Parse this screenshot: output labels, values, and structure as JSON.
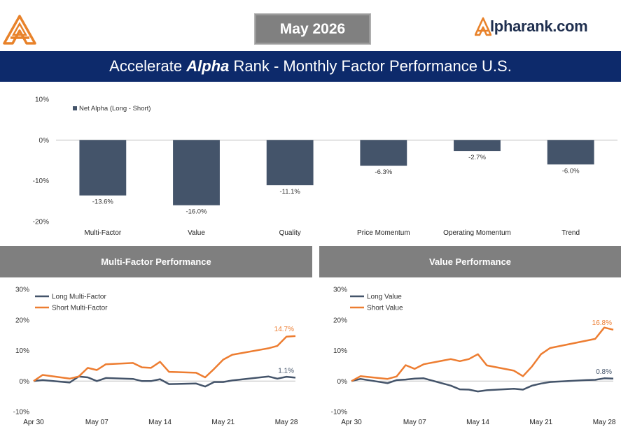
{
  "header": {
    "month": "May 2026",
    "brand_prefix": "A",
    "brand_rest": "lpharank.com",
    "title_pre": "Accelerate ",
    "title_em": "Alpha",
    "title_post": " Rank - Monthly Factor Performance U.S."
  },
  "colors": {
    "navy": "#0d2a6b",
    "bar": "#44546a",
    "long": "#44546a",
    "short": "#ed7d31",
    "panel_gray": "#7f7f7f",
    "brand_orange": "#e8822a"
  },
  "chart_data": [
    {
      "type": "bar",
      "legend": [
        "Net Alpha (Long - Short)"
      ],
      "legend_position": "top-left",
      "categories": [
        "Multi-Factor",
        "Value",
        "Quality",
        "Price Momentum",
        "Operating Momentum",
        "Trend"
      ],
      "series": [
        {
          "name": "Net Alpha (Long - Short)",
          "values": [
            -13.6,
            -16.0,
            -11.1,
            -6.3,
            -2.7,
            -6.0
          ]
        }
      ],
      "data_labels": [
        "-13.6%",
        "-16.0%",
        "-11.1%",
        "-6.3%",
        "-2.7%",
        "-6.0%"
      ],
      "ylim": [
        -20,
        10
      ],
      "yticks": [
        "10%",
        "0%",
        "-10%",
        "-20%"
      ],
      "yticks_values": [
        10,
        0,
        -10,
        -20
      ],
      "grid": false
    },
    {
      "type": "line",
      "title": "Multi-Factor Performance",
      "legend_position": "top-left",
      "x": [
        "2026-04-30",
        "2026-05-01",
        "2026-05-04",
        "2026-05-05",
        "2026-05-06",
        "2026-05-07",
        "2026-05-08",
        "2026-05-11",
        "2026-05-12",
        "2026-05-13",
        "2026-05-14",
        "2026-05-15",
        "2026-05-18",
        "2026-05-19",
        "2026-05-20",
        "2026-05-21",
        "2026-05-22",
        "2026-05-26",
        "2026-05-27",
        "2026-05-28",
        "2026-05-29"
      ],
      "xticks": [
        "Apr 30",
        "May 07",
        "May 14",
        "May 21",
        "May 28"
      ],
      "xticks_values": [
        "2026-04-30",
        "2026-05-07",
        "2026-05-14",
        "2026-05-21",
        "2026-05-28"
      ],
      "ylim": [
        -10,
        30
      ],
      "yticks": [
        "30%",
        "20%",
        "10%",
        "0%",
        "-10%"
      ],
      "yticks_values": [
        30,
        20,
        10,
        0,
        -10
      ],
      "series": [
        {
          "name": "Long Multi-Factor",
          "values": [
            0.0,
            0.3,
            -0.5,
            1.5,
            1.2,
            0.0,
            1.0,
            0.7,
            0.0,
            0.0,
            0.6,
            -1.0,
            -0.8,
            -1.8,
            -0.3,
            -0.3,
            0.2,
            1.5,
            0.8,
            1.4,
            1.1
          ]
        },
        {
          "name": "Short Multi-Factor",
          "values": [
            0.0,
            2.0,
            0.8,
            1.5,
            4.3,
            3.6,
            5.5,
            5.9,
            4.5,
            4.3,
            6.3,
            3.0,
            2.7,
            1.2,
            4.0,
            7.0,
            8.6,
            10.7,
            11.5,
            14.5,
            14.7
          ]
        }
      ],
      "end_labels": [
        "1.1%",
        "14.7%"
      ]
    },
    {
      "type": "line",
      "title": "Value Performance",
      "legend_position": "top-left",
      "x": [
        "2026-04-30",
        "2026-05-01",
        "2026-05-04",
        "2026-05-05",
        "2026-05-06",
        "2026-05-07",
        "2026-05-08",
        "2026-05-11",
        "2026-05-12",
        "2026-05-13",
        "2026-05-14",
        "2026-05-15",
        "2026-05-18",
        "2026-05-19",
        "2026-05-20",
        "2026-05-21",
        "2026-05-22",
        "2026-05-26",
        "2026-05-27",
        "2026-05-28",
        "2026-05-29"
      ],
      "xticks": [
        "Apr 30",
        "May 07",
        "May 14",
        "May 21",
        "May 28"
      ],
      "xticks_values": [
        "2026-04-30",
        "2026-05-07",
        "2026-05-14",
        "2026-05-21",
        "2026-05-28"
      ],
      "ylim": [
        -10,
        30
      ],
      "yticks": [
        "30%",
        "20%",
        "10%",
        "0%",
        "-10%"
      ],
      "yticks_values": [
        30,
        20,
        10,
        0,
        -10
      ],
      "series": [
        {
          "name": "Long Value",
          "values": [
            0.0,
            0.7,
            -0.7,
            0.3,
            0.5,
            0.8,
            0.9,
            -1.5,
            -2.7,
            -2.8,
            -3.4,
            -3.0,
            -2.5,
            -2.8,
            -1.5,
            -0.8,
            -0.3,
            0.3,
            0.4,
            0.9,
            0.8
          ]
        },
        {
          "name": "Short Value",
          "values": [
            0.0,
            1.6,
            0.7,
            1.5,
            5.2,
            4.0,
            5.5,
            7.2,
            6.5,
            7.2,
            8.8,
            5.1,
            3.4,
            1.6,
            4.8,
            8.8,
            10.8,
            13.2,
            13.8,
            17.5,
            16.8
          ]
        }
      ],
      "end_labels": [
        "0.8%",
        "16.8%"
      ]
    }
  ]
}
